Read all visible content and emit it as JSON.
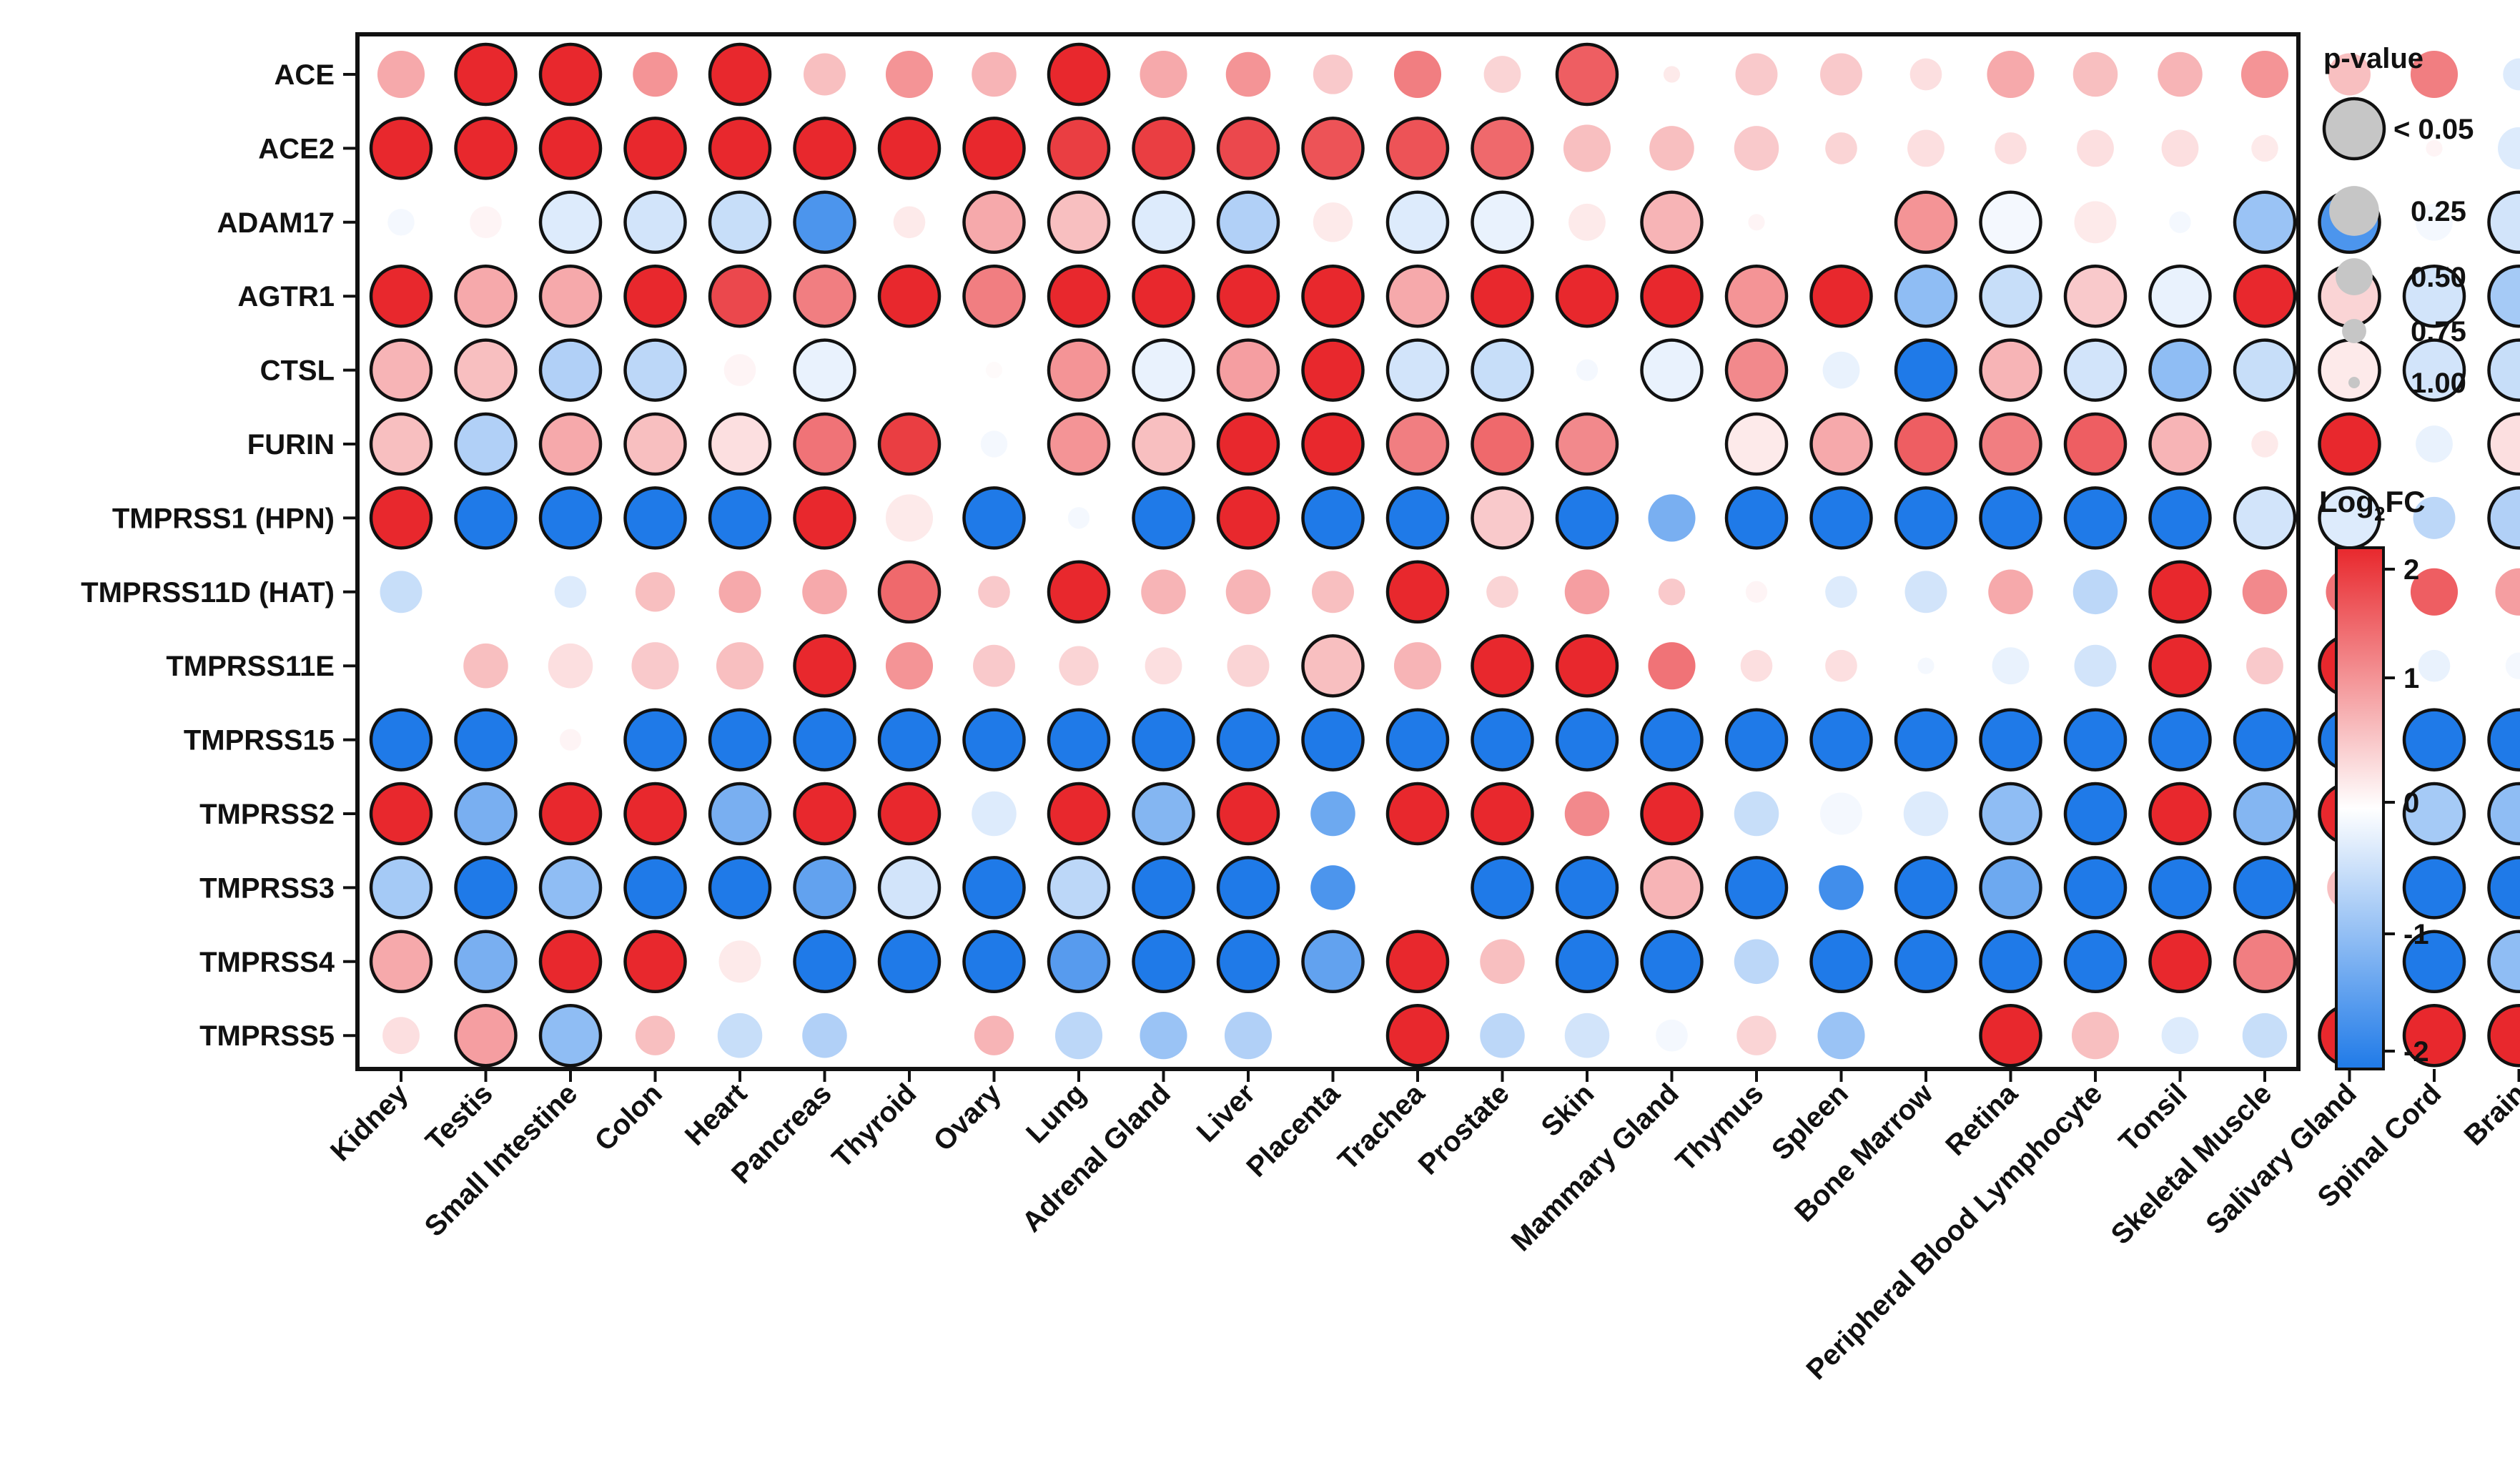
{
  "chart_data": {
    "type": "bubble-heatmap",
    "genes": [
      "ACE",
      "ACE2",
      "ADAM17",
      "AGTR1",
      "CTSL",
      "FURIN",
      "TMPRSS1 (HPN)",
      "TMPRSS11D (HAT)",
      "TMPRSS11E",
      "TMPRSS15",
      "TMPRSS2",
      "TMPRSS3",
      "TMPRSS4",
      "TMPRSS5"
    ],
    "tissues": [
      "Kidney",
      "Testis",
      "Small Intestine",
      "Colon",
      "Heart",
      "Pancreas",
      "Thyroid",
      "Ovary",
      "Lung",
      "Adrenal Gland",
      "Liver",
      "Placenta",
      "Trachea",
      "Prostate",
      "Skin",
      "Mammary Gland",
      "Thymus",
      "Spleen",
      "Bone Marrow",
      "Retina",
      "Peripheral Blood Lymphocyte",
      "Tonsil",
      "Skeletal Muscle",
      "Salivary Gland",
      "Spinal Cord",
      "Brain"
    ],
    "log2fc": [
      [
        0.8,
        2,
        2,
        1,
        2,
        0.6,
        1,
        0.7,
        2,
        0.8,
        1,
        0.5,
        1.2,
        0.4,
        1.5,
        0.2,
        0.5,
        0.5,
        0.3,
        0.8,
        0.6,
        0.7,
        1,
        0.6,
        1.2,
        -0.3
      ],
      [
        2,
        2,
        2,
        2,
        2,
        2,
        2,
        2,
        1.8,
        1.8,
        1.7,
        1.6,
        1.6,
        1.4,
        0.6,
        0.6,
        0.5,
        0.4,
        0.3,
        0.3,
        0.3,
        0.3,
        0.2,
        0.1,
        0.1,
        -0.3
      ],
      [
        -0.1,
        0.1,
        -0.3,
        -0.4,
        -0.5,
        -1.6,
        0.2,
        0.8,
        0.6,
        -0.3,
        -0.7,
        0.2,
        -0.3,
        -0.2,
        0.2,
        0.7,
        0.1,
        0,
        1,
        -0.1,
        0.2,
        -0.1,
        -0.9,
        -1.6,
        -0.1,
        -0.4
      ],
      [
        2,
        0.8,
        0.8,
        2,
        1.7,
        1.2,
        2,
        1.2,
        2,
        2,
        2,
        2,
        0.8,
        2,
        2,
        2,
        1,
        2,
        -1,
        -0.5,
        0.5,
        -0.2,
        2,
        0.4,
        -0.4,
        -0.8
      ],
      [
        0.7,
        0.6,
        -0.7,
        -0.6,
        0.1,
        -0.2,
        0,
        0.05,
        1,
        -0.2,
        0.9,
        2,
        -0.4,
        -0.5,
        -0.1,
        -0.2,
        1.1,
        -0.2,
        -2,
        0.7,
        -0.4,
        -1,
        -0.5,
        0.2,
        -0.4,
        -0.5
      ],
      [
        0.6,
        -0.7,
        0.8,
        0.6,
        0.3,
        1.3,
        1.8,
        -0.1,
        1,
        0.6,
        2,
        2,
        1.2,
        1.4,
        1.1,
        0,
        0.2,
        0.8,
        1.5,
        1.2,
        1.5,
        0.7,
        0.2,
        2,
        -0.2,
        0.3
      ],
      [
        2,
        -2,
        -2,
        -2,
        -2,
        2,
        0.2,
        -2,
        -0.1,
        -2,
        2,
        -2,
        -2,
        0.5,
        -2,
        -1.2,
        -2,
        -2,
        -2,
        -2,
        -2,
        -2,
        -0.4,
        -0.3,
        -0.6,
        -0.7
      ],
      [
        -0.5,
        0,
        -0.3,
        0.6,
        0.8,
        0.8,
        1.4,
        0.5,
        2,
        0.7,
        0.7,
        0.6,
        2,
        0.4,
        0.9,
        0.5,
        0.1,
        -0.3,
        -0.4,
        0.8,
        -0.6,
        2,
        1.1,
        1.3,
        1.5,
        0.9
      ],
      [
        0,
        0.6,
        0.3,
        0.5,
        0.6,
        2,
        1,
        0.5,
        0.4,
        0.3,
        0.4,
        0.6,
        0.7,
        2,
        2,
        1.3,
        0.3,
        0.3,
        -0.1,
        -0.2,
        -0.4,
        2,
        0.5,
        2,
        -0.2,
        -0.1
      ],
      [
        -2,
        -2,
        0.1,
        -2,
        -2,
        -2,
        -2,
        -2,
        -2,
        -2,
        -2,
        -2,
        -2,
        -2,
        -2,
        -2,
        -2,
        -2,
        -2,
        -2,
        -2,
        -2,
        -2,
        -2,
        -2,
        -2
      ],
      [
        2,
        -1.2,
        2,
        2,
        -1.2,
        2,
        2,
        -0.3,
        2,
        -1.1,
        2,
        -1.3,
        2,
        2,
        1.1,
        2,
        -0.5,
        -0.1,
        -0.3,
        -1,
        -2,
        2,
        -1.1,
        2,
        -0.8,
        -1
      ],
      [
        -0.8,
        -2,
        -1,
        -2,
        -2,
        -1.4,
        -0.4,
        -2,
        -0.6,
        -2,
        -2,
        -1.6,
        0,
        -2,
        -2,
        0.7,
        -2,
        -1.7,
        -2,
        -1.3,
        -2,
        -2,
        -2,
        0.6,
        -2,
        -2
      ],
      [
        0.8,
        -1.2,
        2,
        2,
        0.2,
        -2,
        -2,
        -2,
        -1.5,
        -2,
        -2,
        -1.4,
        2,
        0.6,
        -2,
        -2,
        -0.6,
        -2,
        -2,
        -2,
        -2,
        2,
        1.2,
        0,
        -2,
        -1
      ],
      [
        0.3,
        0.9,
        -1,
        0.6,
        -0.5,
        -0.7,
        0,
        0.7,
        -0.6,
        -0.9,
        -0.7,
        0,
        2,
        -0.6,
        -0.4,
        -0.1,
        0.4,
        -0.9,
        0,
        2,
        0.6,
        -0.3,
        -0.5,
        2,
        2,
        2
      ]
    ],
    "pvalue": [
      [
        0.3,
        0.01,
        0.01,
        0.35,
        0.01,
        0.4,
        0.3,
        0.35,
        0.01,
        0.3,
        0.35,
        0.45,
        0.3,
        0.5,
        0.01,
        0.9,
        0.4,
        0.4,
        0.6,
        0.3,
        0.35,
        0.35,
        0.3,
        0.4,
        0.3,
        0.6
      ],
      [
        0.01,
        0.01,
        0.01,
        0.01,
        0.01,
        0.01,
        0.01,
        0.01,
        0.01,
        0.01,
        0.01,
        0.01,
        0.01,
        0.01,
        0.3,
        0.35,
        0.35,
        0.6,
        0.5,
        0.6,
        0.5,
        0.5,
        0.7,
        0.9,
        0.9,
        0.4
      ],
      [
        0.7,
        0.6,
        0.01,
        0.01,
        0.01,
        0.01,
        0.6,
        0.01,
        0.01,
        0.01,
        0.01,
        0.45,
        0.01,
        0.01,
        0.5,
        0.01,
        0.9,
        0.9,
        0.01,
        0.01,
        0.4,
        0.8,
        0.01,
        0.01,
        0.5,
        0.01
      ],
      [
        0.01,
        0.01,
        0.01,
        0.01,
        0.01,
        0.01,
        0.01,
        0.01,
        0.01,
        0.01,
        0.01,
        0.01,
        0.01,
        0.01,
        0.01,
        0.01,
        0.01,
        0.01,
        0.01,
        0.01,
        0.01,
        0.01,
        0.01,
        0.01,
        0.01,
        0.01
      ],
      [
        0.01,
        0.01,
        0.01,
        0.01,
        0.6,
        0.01,
        0.9,
        0.9,
        0.01,
        0.01,
        0.01,
        0.01,
        0.01,
        0.01,
        0.8,
        0.01,
        0.01,
        0.5,
        0.01,
        0.01,
        0.01,
        0.01,
        0.01,
        0.01,
        0.01,
        0.01
      ],
      [
        0.01,
        0.01,
        0.01,
        0.01,
        0.01,
        0.01,
        0.01,
        0.7,
        0.01,
        0.01,
        0.01,
        0.01,
        0.01,
        0.01,
        0.01,
        0.95,
        0.01,
        0.01,
        0.01,
        0.01,
        0.01,
        0.01,
        0.7,
        0.01,
        0.5,
        0.01
      ],
      [
        0.01,
        0.01,
        0.01,
        0.01,
        0.01,
        0.01,
        0.3,
        0.01,
        0.8,
        0.01,
        0.01,
        0.01,
        0.01,
        0.01,
        0.01,
        0.3,
        0.01,
        0.01,
        0.01,
        0.01,
        0.01,
        0.01,
        0.01,
        0.01,
        0.4,
        0.01
      ],
      [
        0.4,
        0.8,
        0.6,
        0.45,
        0.4,
        0.35,
        0.01,
        0.6,
        0.01,
        0.35,
        0.35,
        0.4,
        0.01,
        0.6,
        0.35,
        0.7,
        0.8,
        0.6,
        0.4,
        0.35,
        0.35,
        0.01,
        0.35,
        0.3,
        0.3,
        0.3
      ],
      [
        0.9,
        0.35,
        0.35,
        0.3,
        0.3,
        0.01,
        0.3,
        0.4,
        0.45,
        0.5,
        0.4,
        0.01,
        0.3,
        0.01,
        0.01,
        0.3,
        0.6,
        0.6,
        0.9,
        0.5,
        0.4,
        0.01,
        0.5,
        0.01,
        0.6,
        0.7
      ],
      [
        0.01,
        0.01,
        0.8,
        0.01,
        0.01,
        0.01,
        0.01,
        0.01,
        0.01,
        0.01,
        0.01,
        0.01,
        0.01,
        0.01,
        0.01,
        0.01,
        0.01,
        0.01,
        0.01,
        0.01,
        0.01,
        0.01,
        0.01,
        0.01,
        0.01,
        0.01
      ],
      [
        0.01,
        0.01,
        0.01,
        0.01,
        0.01,
        0.01,
        0.01,
        0.35,
        0.01,
        0.01,
        0.01,
        0.35,
        0.01,
        0.01,
        0.35,
        0.01,
        0.35,
        0.4,
        0.35,
        0.01,
        0.01,
        0.01,
        0.01,
        0.01,
        0.01,
        0.01
      ],
      [
        0.01,
        0.01,
        0.01,
        0.01,
        0.01,
        0.01,
        0.01,
        0.01,
        0.01,
        0.01,
        0.01,
        0.35,
        0.95,
        0.01,
        0.01,
        0.01,
        0.01,
        0.35,
        0.01,
        0.01,
        0.01,
        0.01,
        0.01,
        0.35,
        0.01,
        0.01
      ],
      [
        0.01,
        0.01,
        0.01,
        0.01,
        0.4,
        0.01,
        0.01,
        0.01,
        0.01,
        0.01,
        0.01,
        0.01,
        0.01,
        0.35,
        0.01,
        0.01,
        0.35,
        0.01,
        0.01,
        0.01,
        0.01,
        0.01,
        0.01,
        0.9,
        0.01,
        0.01
      ],
      [
        0.5,
        0.01,
        0.01,
        0.45,
        0.35,
        0.35,
        0.9,
        0.45,
        0.3,
        0.3,
        0.3,
        0.9,
        0.01,
        0.35,
        0.35,
        0.6,
        0.45,
        0.3,
        0.9,
        0.01,
        0.3,
        0.5,
        0.35,
        0.01,
        0.01,
        0.01
      ]
    ],
    "pvalue_legend": {
      "title": "p-value",
      "entries": [
        {
          "label": "< 0.05",
          "p": 0.01
        },
        {
          "label": "0.25",
          "p": 0.25
        },
        {
          "label": "0.50",
          "p": 0.5
        },
        {
          "label": "0.75",
          "p": 0.75
        },
        {
          "label": "1.00",
          "p": 1.0
        }
      ]
    },
    "colorbar": {
      "title_main": "Log",
      "title_sub": "2",
      "title_suffix": "FC",
      "range": [
        -2,
        2
      ],
      "ticks": [
        "2",
        "1",
        "0",
        "-1",
        "-2"
      ],
      "colors": {
        "low": "#1f7ae8",
        "mid": "#ffffff",
        "high": "#e8282d"
      }
    }
  }
}
